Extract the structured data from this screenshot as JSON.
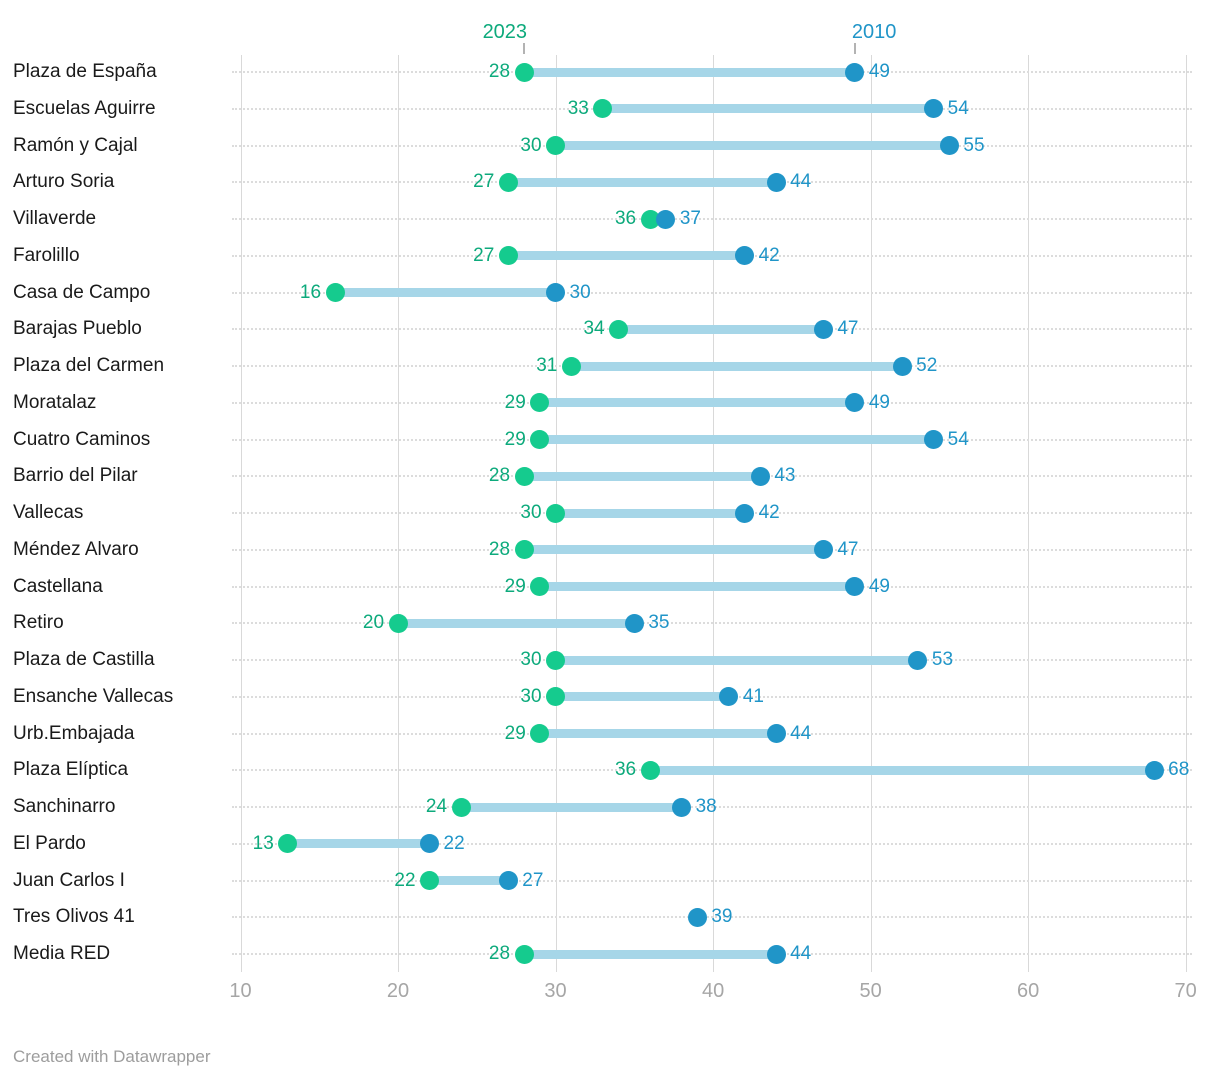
{
  "footer": {
    "credit": "Created with Datawrapper"
  },
  "colors": {
    "green_dot": "#15cb8e",
    "green_text": "#0daa7c",
    "blue_dot": "#2095c8",
    "blue_text": "#2095c8",
    "range_bar": "#a6d6e8",
    "gridline": "#d9d9d9",
    "leader_dots": "#dcdcdc",
    "station_label": "#1a1a1a",
    "axis_text": "#a6a6a6"
  },
  "chart_data": {
    "type": "dumbbell",
    "series_labels": {
      "left": "2023",
      "right": "2010"
    },
    "xlim": [
      10,
      70
    ],
    "x_ticks": [
      10,
      20,
      30,
      40,
      50,
      60,
      70
    ],
    "grid": "vertical-solid-with-dotted-row-leaders",
    "legend_position": "top-inline",
    "categories": [
      "Plaza de España",
      "Escuelas Aguirre",
      "Ramón y Cajal",
      "Arturo Soria",
      "Villaverde",
      "Farolillo",
      "Casa de Campo",
      "Barajas Pueblo",
      "Plaza del Carmen",
      "Moratalaz",
      "Cuatro Caminos",
      "Barrio del Pilar",
      "Vallecas",
      "Méndez Alvaro",
      "Castellana",
      "Retiro",
      "Plaza de Castilla",
      "Ensanche Vallecas",
      "Urb.Embajada",
      "Plaza Elíptica",
      "Sanchinarro",
      "El Pardo",
      "Juan Carlos I",
      "Tres Olivos 41",
      "Media RED"
    ],
    "series": [
      {
        "name": "2023",
        "color_key": "green_dot",
        "values": [
          28,
          33,
          30,
          27,
          36,
          27,
          16,
          34,
          31,
          29,
          29,
          28,
          30,
          28,
          29,
          20,
          30,
          30,
          29,
          36,
          24,
          13,
          22,
          null,
          28
        ]
      },
      {
        "name": "2010",
        "color_key": "blue_dot",
        "values": [
          49,
          54,
          55,
          44,
          37,
          42,
          30,
          47,
          52,
          49,
          54,
          43,
          42,
          47,
          49,
          35,
          53,
          41,
          44,
          68,
          38,
          22,
          27,
          39,
          44
        ]
      }
    ]
  }
}
